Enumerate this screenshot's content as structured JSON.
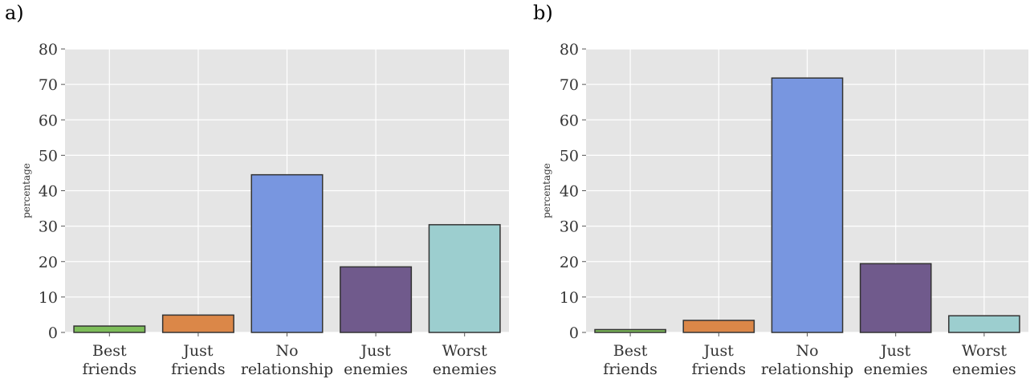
{
  "colors": {
    "background": "#e5e5e5",
    "grid": "#ffffff",
    "bar_edge": "#333333",
    "bars": [
      "#7dbd5a",
      "#db8748",
      "#7896e0",
      "#705a8c",
      "#9ccecf"
    ]
  },
  "chart_data": [
    {
      "panel_label": "a)",
      "type": "bar",
      "categories": [
        [
          "Best",
          "friends"
        ],
        [
          "Just",
          "friends"
        ],
        [
          "No",
          "relationship"
        ],
        [
          "Just",
          "enemies"
        ],
        [
          "Worst",
          "enemies"
        ]
      ],
      "values": [
        1.8,
        4.9,
        44.5,
        18.5,
        30.4
      ],
      "ylabel": "percentage",
      "xlabel": "",
      "ylim": [
        0,
        80
      ],
      "yticks": [
        0,
        10,
        20,
        30,
        40,
        50,
        60,
        70,
        80
      ],
      "grid": true
    },
    {
      "panel_label": "b)",
      "type": "bar",
      "categories": [
        [
          "Best",
          "friends"
        ],
        [
          "Just",
          "friends"
        ],
        [
          "No",
          "relationship"
        ],
        [
          "Just",
          "enemies"
        ],
        [
          "Worst",
          "enemies"
        ]
      ],
      "values": [
        0.8,
        3.4,
        71.8,
        19.4,
        4.7
      ],
      "ylabel": "percentage",
      "xlabel": "",
      "ylim": [
        0,
        80
      ],
      "yticks": [
        0,
        10,
        20,
        30,
        40,
        50,
        60,
        70,
        80
      ],
      "grid": true
    }
  ]
}
